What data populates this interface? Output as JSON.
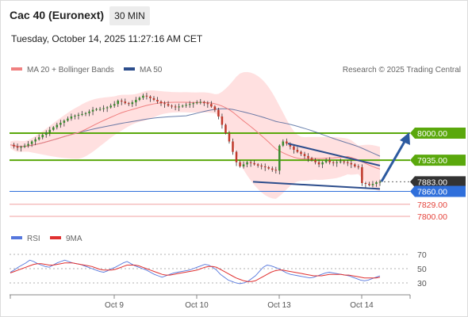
{
  "header": {
    "title": "Cac 40 (Euronext)",
    "timeframe": "30 MIN",
    "datetime": "Tuesday, October 14, 2025 11:27:16 AM CET"
  },
  "legend": {
    "ma20_label": "MA 20 + Bollinger Bands",
    "ma50_label": "MA 50",
    "copyright": "Research © 2025 Trading Central"
  },
  "rsi_legend": {
    "rsi_label": "RSI",
    "ma_label": "9MA"
  },
  "colors": {
    "ma20": "#f08080",
    "ma50": "#2c4d8c",
    "bands": "#ffd6d6",
    "support": "#e4433b",
    "resistance": "#5aa80c",
    "current": "#333333",
    "blue_level": "#2f6fdb",
    "rsi": "#5577dd",
    "rsi_ma": "#e03030"
  },
  "chart_data": {
    "type": "candlestick",
    "x_tick_labels": [
      "Oct 9",
      "Oct 10",
      "Oct 13",
      "Oct 14"
    ],
    "ylim": [
      7790,
      8030
    ],
    "levels": [
      {
        "label": "8000.00",
        "value": 8000,
        "kind": "resistance"
      },
      {
        "label": "7935.00",
        "value": 7935,
        "kind": "resistance"
      },
      {
        "label": "7883.00",
        "value": 7883,
        "kind": "current"
      },
      {
        "label": "7860.00",
        "value": 7860,
        "kind": "pivot"
      },
      {
        "label": "7829.00",
        "value": 7829,
        "kind": "support"
      },
      {
        "label": "7800.00",
        "value": 7800,
        "kind": "support"
      }
    ],
    "close_series": [
      7972,
      7968,
      7965,
      7967,
      7970,
      7974,
      7980,
      7985,
      7990,
      7996,
      8002,
      8008,
      8014,
      8020,
      8025,
      8030,
      8035,
      8040,
      8042,
      8044,
      8046,
      8048,
      8052,
      8056,
      8058,
      8058,
      8060,
      8062,
      8066,
      8070,
      8078,
      8076,
      8072,
      8070,
      8074,
      8080,
      8085,
      8090,
      8088,
      8084,
      8080,
      8076,
      8072,
      8070,
      8066,
      8064,
      8062,
      8064,
      8066,
      8068,
      8070,
      8072,
      8074,
      8075,
      8072,
      8070,
      8064,
      8056,
      8040,
      8020,
      8000,
      7980,
      7955,
      7930,
      7920,
      7925,
      7930,
      7928,
      7925,
      7922,
      7920,
      7918,
      7915,
      7912,
      7910,
      7970,
      7980,
      7975,
      7968,
      7960,
      7955,
      7950,
      7945,
      7940,
      7935,
      7930,
      7925,
      7930,
      7935,
      7930,
      7928,
      7930,
      7932,
      7930,
      7928,
      7925,
      7920,
      7918,
      7880,
      7878,
      7875,
      7878,
      7882,
      7883
    ],
    "rsi": {
      "ylim": [
        20,
        80
      ],
      "ticks": [
        70,
        50,
        30
      ],
      "rsi_values": [
        45,
        48,
        52,
        55,
        58,
        62,
        60,
        57,
        55,
        53,
        52,
        55,
        58,
        60,
        62,
        60,
        58,
        57,
        56,
        54,
        52,
        50,
        48,
        46,
        45,
        47,
        50,
        52,
        55,
        58,
        60,
        57,
        54,
        52,
        50,
        48,
        45,
        42,
        40,
        38,
        40,
        42,
        44,
        45,
        46,
        47,
        48,
        50,
        52,
        54,
        56,
        55,
        52,
        48,
        42,
        38,
        34,
        32,
        30,
        29,
        30,
        32,
        36,
        40,
        46,
        52,
        55,
        54,
        52,
        50,
        47,
        44,
        42,
        41,
        40,
        39,
        38,
        37,
        38,
        40,
        42,
        44,
        45,
        44,
        43,
        42,
        41,
        40,
        38,
        36,
        34,
        33,
        34,
        36,
        38,
        40
      ],
      "ma_values": [
        44,
        46,
        48,
        50,
        52,
        54,
        56,
        57,
        57,
        56,
        55,
        55,
        56,
        57,
        58,
        58,
        58,
        57,
        56,
        55,
        54,
        53,
        51,
        49,
        48,
        48,
        48,
        49,
        51,
        53,
        55,
        55,
        55,
        54,
        52,
        50,
        48,
        46,
        44,
        42,
        41,
        41,
        42,
        43,
        44,
        45,
        46,
        47,
        48,
        50,
        52,
        53,
        53,
        52,
        49,
        46,
        43,
        40,
        37,
        35,
        33,
        32,
        32,
        33,
        36,
        39,
        42,
        45,
        47,
        48,
        48,
        47,
        46,
        45,
        44,
        43,
        42,
        41,
        40,
        40,
        40,
        41,
        42,
        42,
        42,
        42,
        41,
        41,
        40,
        39,
        38,
        37,
        37,
        37,
        37,
        38
      ]
    }
  }
}
